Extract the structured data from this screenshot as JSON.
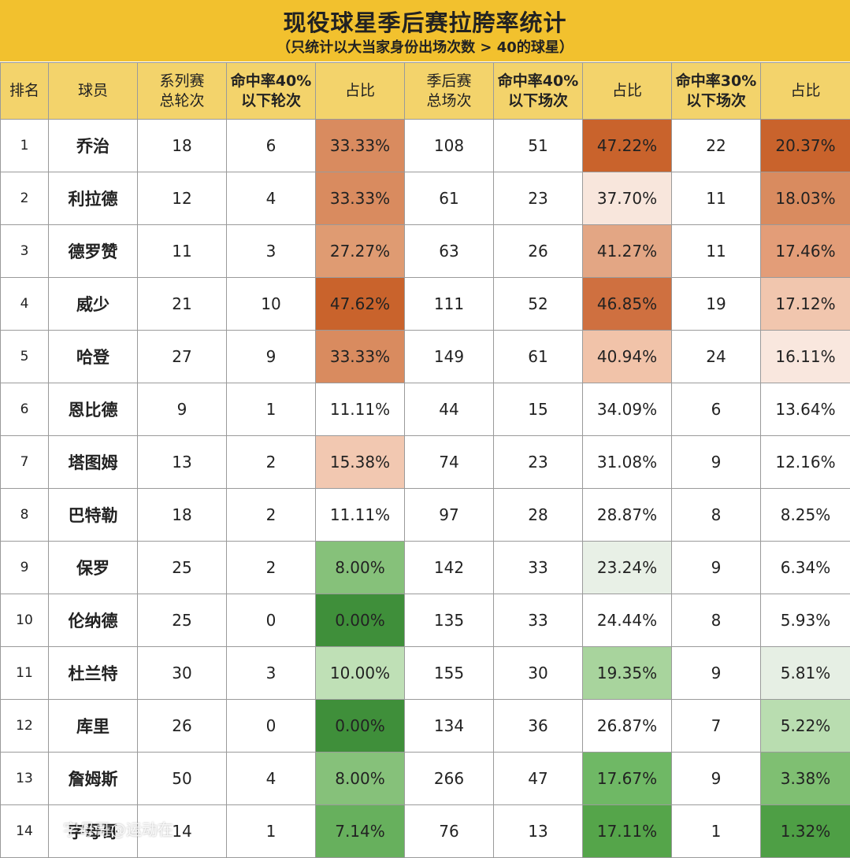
{
  "title": "现役球星季后赛拉胯率统计",
  "subtitle": "（只统计以大当家身份出场次数 > 40的球星）",
  "headers": [
    {
      "lines": [
        "排名"
      ],
      "bold": false
    },
    {
      "lines": [
        "球员"
      ],
      "bold": false
    },
    {
      "lines": [
        "系列赛",
        "总轮次"
      ],
      "bold": false
    },
    {
      "lines": [
        "命中率40%",
        "以下轮次"
      ],
      "bold": true
    },
    {
      "lines": [
        "占比"
      ],
      "bold": false
    },
    {
      "lines": [
        "季后赛",
        "总场次"
      ],
      "bold": false
    },
    {
      "lines": [
        "命中率40%",
        "以下场次"
      ],
      "bold": true
    },
    {
      "lines": [
        "占比"
      ],
      "bold": false
    },
    {
      "lines": [
        "命中率30%",
        "以下场次"
      ],
      "bold": true
    },
    {
      "lines": [
        "占比"
      ],
      "bold": false
    }
  ],
  "rows": [
    {
      "rank": "1",
      "player": "乔治",
      "series_total": "18",
      "series_below40": "6",
      "series_pct": "33.33%",
      "games_total": "108",
      "games_below40": "51",
      "games_pct40": "47.22%",
      "games_below30": "22",
      "games_pct30": "20.37%"
    },
    {
      "rank": "2",
      "player": "利拉德",
      "series_total": "12",
      "series_below40": "4",
      "series_pct": "33.33%",
      "games_total": "61",
      "games_below40": "23",
      "games_pct40": "37.70%",
      "games_below30": "11",
      "games_pct30": "18.03%"
    },
    {
      "rank": "3",
      "player": "德罗赞",
      "series_total": "11",
      "series_below40": "3",
      "series_pct": "27.27%",
      "games_total": "63",
      "games_below40": "26",
      "games_pct40": "41.27%",
      "games_below30": "11",
      "games_pct30": "17.46%"
    },
    {
      "rank": "4",
      "player": "威少",
      "series_total": "21",
      "series_below40": "10",
      "series_pct": "47.62%",
      "games_total": "111",
      "games_below40": "52",
      "games_pct40": "46.85%",
      "games_below30": "19",
      "games_pct30": "17.12%"
    },
    {
      "rank": "5",
      "player": "哈登",
      "series_total": "27",
      "series_below40": "9",
      "series_pct": "33.33%",
      "games_total": "149",
      "games_below40": "61",
      "games_pct40": "40.94%",
      "games_below30": "24",
      "games_pct30": "16.11%"
    },
    {
      "rank": "6",
      "player": "恩比德",
      "series_total": "9",
      "series_below40": "1",
      "series_pct": "11.11%",
      "games_total": "44",
      "games_below40": "15",
      "games_pct40": "34.09%",
      "games_below30": "6",
      "games_pct30": "13.64%"
    },
    {
      "rank": "7",
      "player": "塔图姆",
      "series_total": "13",
      "series_below40": "2",
      "series_pct": "15.38%",
      "games_total": "74",
      "games_below40": "23",
      "games_pct40": "31.08%",
      "games_below30": "9",
      "games_pct30": "12.16%"
    },
    {
      "rank": "8",
      "player": "巴特勒",
      "series_total": "18",
      "series_below40": "2",
      "series_pct": "11.11%",
      "games_total": "97",
      "games_below40": "28",
      "games_pct40": "28.87%",
      "games_below30": "8",
      "games_pct30": "8.25%"
    },
    {
      "rank": "9",
      "player": "保罗",
      "series_total": "25",
      "series_below40": "2",
      "series_pct": "8.00%",
      "games_total": "142",
      "games_below40": "33",
      "games_pct40": "23.24%",
      "games_below30": "9",
      "games_pct30": "6.34%"
    },
    {
      "rank": "10",
      "player": "伦纳德",
      "series_total": "25",
      "series_below40": "0",
      "series_pct": "0.00%",
      "games_total": "135",
      "games_below40": "33",
      "games_pct40": "24.44%",
      "games_below30": "8",
      "games_pct30": "5.93%"
    },
    {
      "rank": "11",
      "player": "杜兰特",
      "series_total": "30",
      "series_below40": "3",
      "series_pct": "10.00%",
      "games_total": "155",
      "games_below40": "30",
      "games_pct40": "19.35%",
      "games_below30": "9",
      "games_pct30": "5.81%"
    },
    {
      "rank": "12",
      "player": "库里",
      "series_total": "26",
      "series_below40": "0",
      "series_pct": "0.00%",
      "games_total": "134",
      "games_below40": "36",
      "games_pct40": "26.87%",
      "games_below30": "7",
      "games_pct30": "5.22%"
    },
    {
      "rank": "13",
      "player": "詹姆斯",
      "series_total": "50",
      "series_below40": "4",
      "series_pct": "8.00%",
      "games_total": "266",
      "games_below40": "47",
      "games_pct40": "17.67%",
      "games_below30": "9",
      "games_pct30": "3.38%"
    },
    {
      "rank": "14",
      "player": "字母哥",
      "series_total": "14",
      "series_below40": "1",
      "series_pct": "7.14%",
      "games_total": "76",
      "games_below40": "13",
      "games_pct40": "17.11%",
      "games_below30": "1",
      "games_pct30": "1.32%"
    }
  ],
  "cell_colors": {
    "series_pct": [
      "#d98b5f",
      "#d98b5f",
      "#df9b72",
      "#c9632c",
      "#d98b5f",
      "#ffffff",
      "#f2c8b1",
      "#ffffff",
      "#86c17a",
      "#3f8f3a",
      "#bfe0b6",
      "#3f8f3a",
      "#86c17a",
      "#67b05d"
    ],
    "games_pct40": [
      "#c9632c",
      "#f8e6dc",
      "#e3a684",
      "#cf7040",
      "#f1c3a9",
      "#ffffff",
      "#ffffff",
      "#ffffff",
      "#e8f0e6",
      "#ffffff",
      "#a8d49d",
      "#ffffff",
      "#6fb865",
      "#55a54a"
    ],
    "games_pct30": [
      "#c9632c",
      "#d98b5f",
      "#e39d78",
      "#f1c6ae",
      "#f9e7de",
      "#ffffff",
      "#ffffff",
      "#ffffff",
      "#ffffff",
      "#ffffff",
      "#e6efe4",
      "#b9ddb0",
      "#7fbf72",
      "#4e9f45"
    ]
  },
  "watermark": "字母哥@运动在"
}
